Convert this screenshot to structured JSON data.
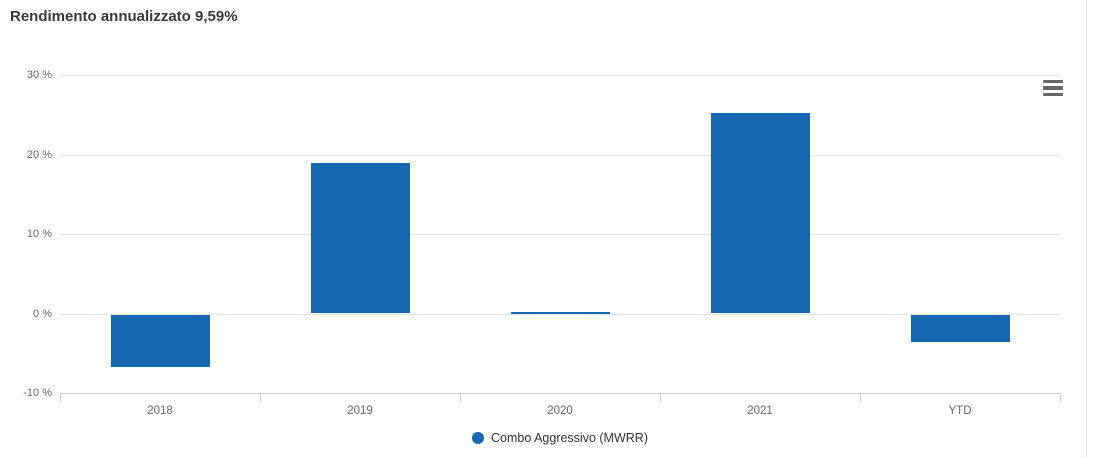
{
  "header": {
    "title": "Rendimento annualizzato 9,59%"
  },
  "chart_data": {
    "type": "bar",
    "title": "Rendimento annualizzato 9,59%",
    "categories": [
      "2018",
      "2019",
      "2020",
      "2021",
      "YTD"
    ],
    "series": [
      {
        "name": "Combo Aggressivo (MWRR)",
        "values": [
          -6.6,
          18.9,
          0.1,
          25.2,
          -3.5
        ],
        "color": "#1668b2"
      }
    ],
    "xlabel": "",
    "ylabel": "",
    "ylim": [
      -10,
      30
    ],
    "yticks": [
      {
        "value": 30,
        "label": "30 %"
      },
      {
        "value": 20,
        "label": "20 %"
      },
      {
        "value": 10,
        "label": "10 %"
      },
      {
        "value": 0,
        "label": "0 %"
      },
      {
        "value": -10,
        "label": "-10 %"
      }
    ],
    "grid": true,
    "legend_position": "bottom-center"
  },
  "legend": {
    "items": [
      {
        "label": "Combo Aggressivo (MWRR)",
        "color": "#1668b2"
      }
    ]
  },
  "icons": {
    "context_menu": "hamburger-menu-icon"
  },
  "colors": {
    "bar": "#1668b2",
    "gridline": "#e6e6e6",
    "axis_line": "#ccd1d9",
    "axis_label": "#666666",
    "title_text": "#3a3a3a",
    "legend_text": "#333333",
    "background": "#ffffff"
  }
}
